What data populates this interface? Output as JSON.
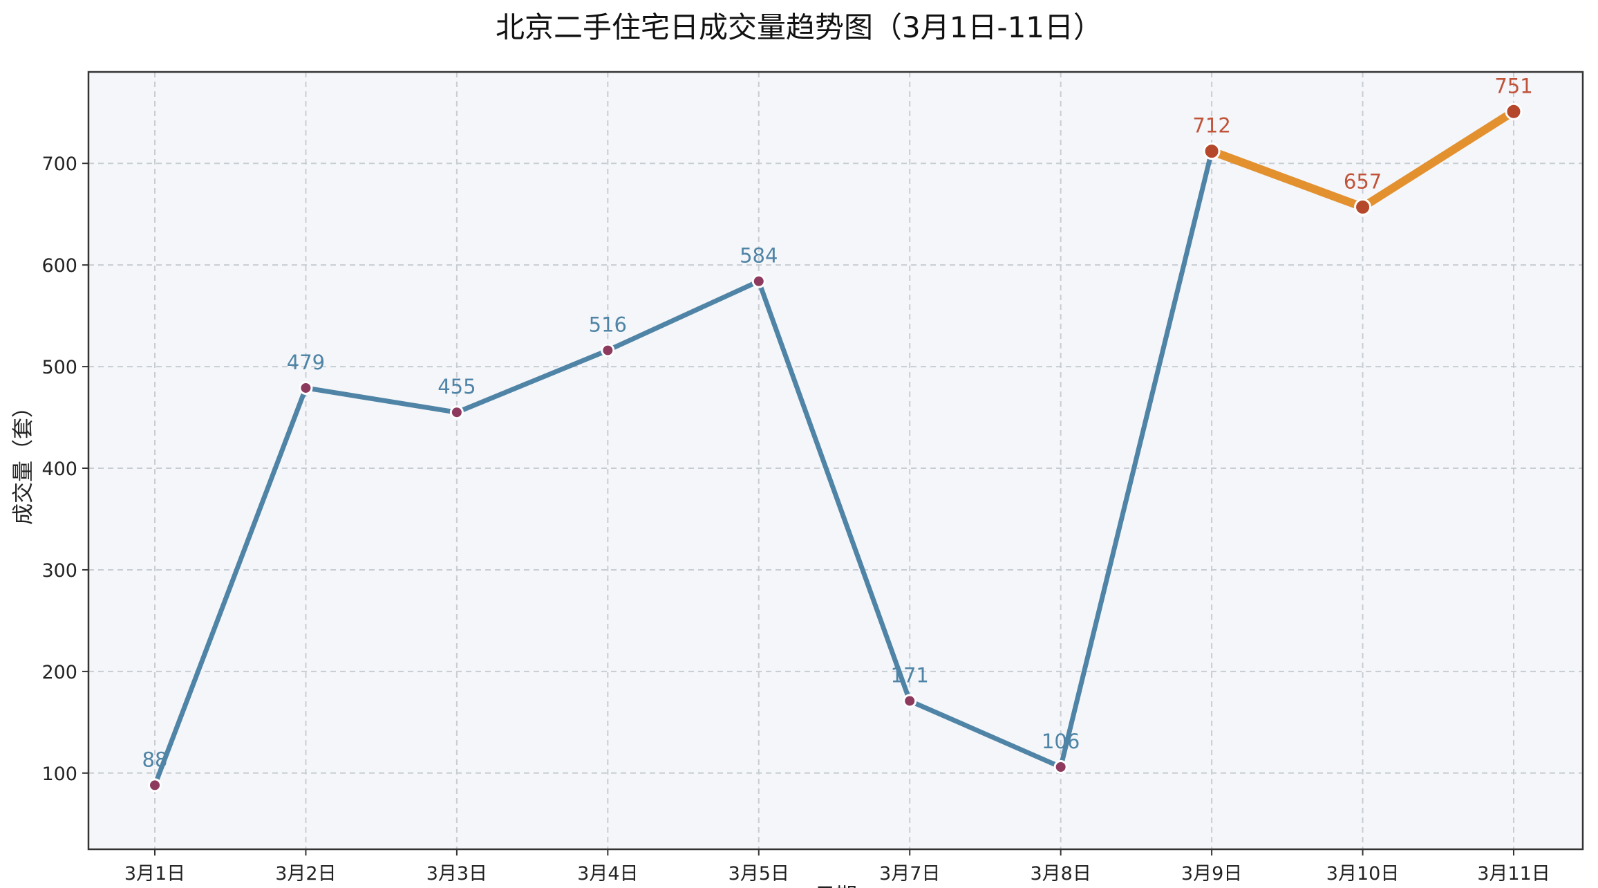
{
  "chart_data": {
    "type": "line",
    "title": "北京二手住宅日成交量趋势图（3月1日-11日）",
    "xlabel": "日期",
    "ylabel": "成交量（套）",
    "categories": [
      "3月1日",
      "3月2日",
      "3月3日",
      "3月4日",
      "3月5日",
      "3月7日",
      "3月8日",
      "3月9日",
      "3月10日",
      "3月11日"
    ],
    "values": [
      88,
      479,
      455,
      516,
      584,
      171,
      106,
      712,
      657,
      751
    ],
    "highlight_from_index": 7,
    "yticks": [
      100,
      200,
      300,
      400,
      500,
      600,
      700
    ],
    "ylim": [
      25,
      790
    ],
    "grid": true,
    "colors": {
      "line": "#4f84a6",
      "label": "#4f84a6",
      "marker": "#8e3a5f",
      "highlight_line": "#e3902f",
      "highlight_label": "#c0533a",
      "highlight_marker": "#b5472b",
      "plot_bg": "#f4f6f9",
      "grid": "#c8cdd3"
    }
  }
}
